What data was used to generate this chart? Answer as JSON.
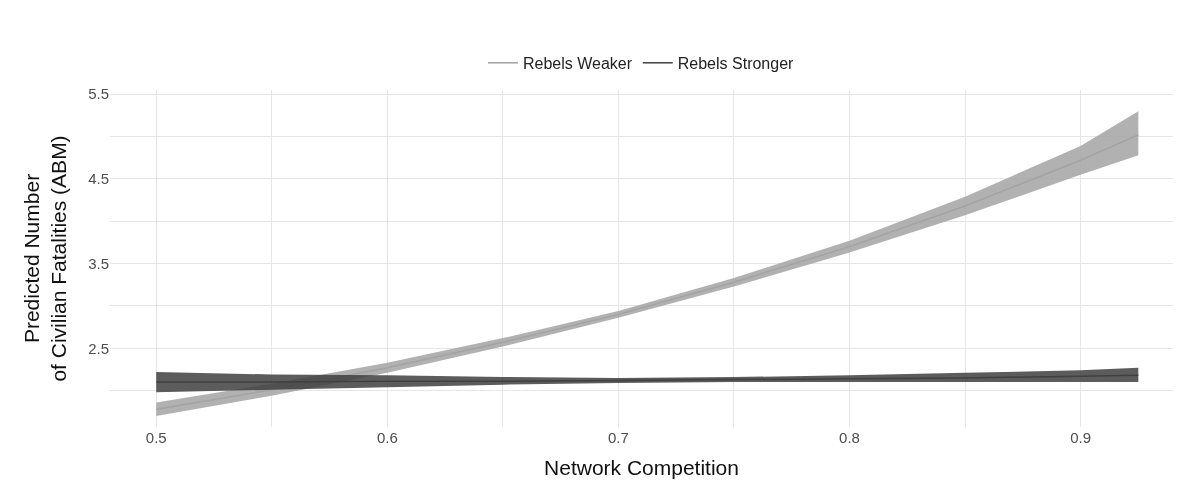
{
  "chart_data": {
    "type": "line",
    "xlabel": "Network Competition",
    "ylabel": "Predicted Number\nof Civilian Fatalities (ABM)",
    "x": [
      0.5,
      0.55,
      0.6,
      0.65,
      0.7,
      0.75,
      0.8,
      0.85,
      0.9,
      0.925
    ],
    "series": [
      {
        "name": "Rebels Weaker",
        "color": "#a3a3a3",
        "values": [
          1.78,
          2.01,
          2.27,
          2.57,
          2.9,
          3.28,
          3.7,
          4.18,
          4.72,
          5.02
        ],
        "lower": [
          1.7,
          1.94,
          2.21,
          2.52,
          2.86,
          3.23,
          3.63,
          4.07,
          4.55,
          4.78
        ],
        "upper": [
          1.86,
          2.08,
          2.33,
          2.62,
          2.94,
          3.33,
          3.77,
          4.29,
          4.89,
          5.3
        ]
      },
      {
        "name": "Rebels Stronger",
        "color": "#404040",
        "values": [
          2.1,
          2.1,
          2.11,
          2.11,
          2.12,
          2.13,
          2.14,
          2.15,
          2.17,
          2.18
        ],
        "lower": [
          1.98,
          2.01,
          2.04,
          2.07,
          2.09,
          2.1,
          2.1,
          2.1,
          2.1,
          2.1
        ],
        "upper": [
          2.22,
          2.19,
          2.18,
          2.16,
          2.15,
          2.16,
          2.18,
          2.21,
          2.24,
          2.27
        ]
      }
    ],
    "xlim": [
      0.48,
      0.94
    ],
    "ylim": [
      1.57,
      5.55
    ],
    "xticks": [
      0.5,
      {
        "value": 0.55,
        "label": null
      },
      0.6,
      {
        "value": 0.65,
        "label": null
      },
      0.7,
      {
        "value": 0.75,
        "label": null
      },
      0.8,
      {
        "value": 0.85,
        "label": null
      },
      0.9
    ],
    "yticks": [
      {
        "value": 2.0,
        "label": null
      },
      2.5,
      {
        "value": 3.0,
        "label": null
      },
      3.5,
      {
        "value": 4.0,
        "label": null
      },
      4.5,
      {
        "value": 5.0,
        "label": null
      },
      5.5
    ],
    "grid": true,
    "legend": "top",
    "marker": "none",
    "line_style": "solid"
  }
}
